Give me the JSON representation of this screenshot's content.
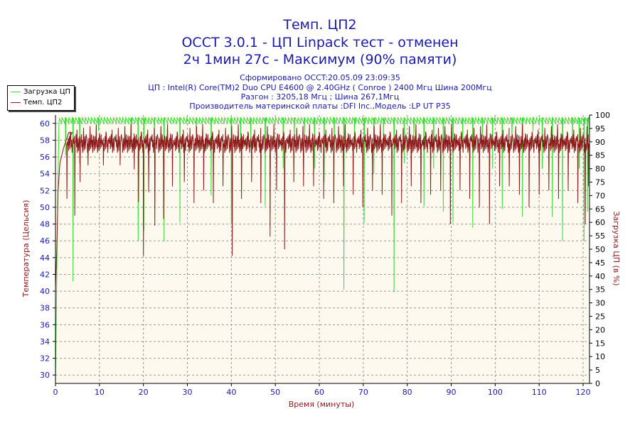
{
  "header": {
    "title_line1": "Темп. ЦП2",
    "title_line2": "OCCT 3.0.1 - ЦП Linpack тест - отменен",
    "title_line3": "2ч 1мин 27с - Максимум (90% памяти)",
    "info_line1": "Сформировано OCCT:20.05.09 23:09:35",
    "info_line2": "ЦП : Intel(R) Core(TM)2 Duo CPU E4600 @ 2.40GHz ( Conroe ) 2400 Мгц Шина 200Мгц",
    "info_line3": "Разгон : 3205,18 Мгц ; Шина 267,1Мгц",
    "info_line4": "Производитель материнской платы :DFI Inc.,Модель :LP UT P35"
  },
  "legend": {
    "cpu_load_label": "Загрузка ЦП",
    "cpu2_temp_label": "Темп. ЦП2"
  },
  "colors": {
    "cpu_load": "#33dd33",
    "cpu2_temp": "#8b1a1a",
    "plot_bg": "#fdf9ef",
    "axis_text": "#1a1aa8",
    "axis_label": "#8b1a1a"
  },
  "chart_data": {
    "type": "line",
    "xlabel": "Время (минуты)",
    "ylabel_left": "Температура (Цельсия)",
    "ylabel_right": "Загрузка ЦП (в %)",
    "xlim": [
      0,
      121.45
    ],
    "ylim_left": [
      29,
      61
    ],
    "ylim_right": [
      0,
      100
    ],
    "x_ticks": [
      0,
      10,
      20,
      30,
      40,
      50,
      60,
      70,
      80,
      90,
      100,
      110,
      120
    ],
    "y_ticks_left": [
      30,
      32,
      34,
      36,
      38,
      40,
      42,
      44,
      46,
      48,
      50,
      52,
      54,
      56,
      58,
      60
    ],
    "y_ticks_right": [
      0,
      5,
      10,
      15,
      20,
      25,
      30,
      35,
      40,
      45,
      50,
      55,
      60,
      65,
      70,
      75,
      80,
      85,
      90,
      95,
      100
    ],
    "grid": true,
    "series": [
      {
        "name": "Загрузка ЦП",
        "axis": "right",
        "baseline": 99,
        "start": [
          [
            0,
            0
          ],
          [
            0.4,
            55
          ],
          [
            0.8,
            97
          ]
        ],
        "dips": [
          [
            2.3,
            85
          ],
          [
            4.0,
            38
          ],
          [
            5.5,
            82
          ],
          [
            9.8,
            94
          ],
          [
            17.2,
            90
          ],
          [
            18.8,
            53
          ],
          [
            20.1,
            57
          ],
          [
            22.5,
            88
          ],
          [
            24.7,
            53
          ],
          [
            28.3,
            60
          ],
          [
            32.0,
            93
          ],
          [
            35.4,
            70
          ],
          [
            40.0,
            60
          ],
          [
            42.1,
            90
          ],
          [
            44.4,
            88
          ],
          [
            47.7,
            66
          ],
          [
            51.8,
            80
          ],
          [
            54.3,
            90
          ],
          [
            56.6,
            92
          ],
          [
            58.9,
            80
          ],
          [
            61.1,
            75
          ],
          [
            63.4,
            86
          ],
          [
            65.6,
            35
          ],
          [
            68.0,
            90
          ],
          [
            70.2,
            60
          ],
          [
            72.4,
            78
          ],
          [
            74.6,
            90
          ],
          [
            77.0,
            34
          ],
          [
            79.3,
            82
          ],
          [
            81.5,
            92
          ],
          [
            83.8,
            66
          ],
          [
            86.0,
            80
          ],
          [
            88.2,
            64
          ],
          [
            90.4,
            60
          ],
          [
            92.6,
            88
          ],
          [
            94.9,
            58
          ],
          [
            97.1,
            92
          ],
          [
            99.4,
            80
          ],
          [
            101.6,
            65
          ],
          [
            103.8,
            90
          ],
          [
            106.2,
            62
          ],
          [
            108.6,
            94
          ],
          [
            110.7,
            80
          ],
          [
            113.0,
            62
          ],
          [
            115.3,
            53
          ],
          [
            117.6,
            88
          ],
          [
            119.1,
            80
          ],
          [
            120.2,
            53
          ],
          [
            121.0,
            64
          ]
        ]
      },
      {
        "name": "Темп. ЦП2",
        "axis": "left",
        "baseline": 57.6,
        "start": [
          [
            0,
            40.5
          ],
          [
            0.3,
            45
          ],
          [
            0.6,
            52
          ],
          [
            1.0,
            55.2
          ],
          [
            1.8,
            57.0
          ],
          [
            3.0,
            58.9
          ],
          [
            3.8,
            58.9
          ]
        ],
        "dips": [
          [
            2.6,
            51.0
          ],
          [
            4.4,
            49.0
          ],
          [
            5.6,
            53.0
          ],
          [
            7.4,
            55.0
          ],
          [
            10.9,
            55.0
          ],
          [
            14.7,
            55.0
          ],
          [
            17.9,
            54.5
          ],
          [
            18.9,
            50.6
          ],
          [
            20.0,
            44.2
          ],
          [
            21.2,
            51.8
          ],
          [
            22.6,
            47.8
          ],
          [
            24.6,
            48.6
          ],
          [
            26.6,
            52.5
          ],
          [
            29.3,
            53.0
          ],
          [
            31.5,
            50.5
          ],
          [
            33.7,
            52.0
          ],
          [
            35.9,
            50.5
          ],
          [
            38.1,
            52.5
          ],
          [
            40.2,
            44.2
          ],
          [
            42.3,
            51.0
          ],
          [
            44.6,
            53.0
          ],
          [
            46.7,
            50.5
          ],
          [
            48.8,
            46.5
          ],
          [
            50.3,
            52.0
          ],
          [
            52.1,
            45.0
          ],
          [
            54.2,
            53.0
          ],
          [
            56.4,
            52.5
          ],
          [
            58.7,
            52.5
          ],
          [
            61.0,
            51.0
          ],
          [
            63.3,
            50.5
          ],
          [
            65.5,
            52.5
          ],
          [
            67.7,
            51.5
          ],
          [
            69.9,
            50.0
          ],
          [
            72.1,
            52.0
          ],
          [
            74.3,
            51.5
          ],
          [
            76.5,
            49.0
          ],
          [
            78.7,
            50.5
          ],
          [
            80.9,
            52.5
          ],
          [
            83.1,
            50.5
          ],
          [
            85.3,
            51.5
          ],
          [
            87.6,
            52.0
          ],
          [
            89.8,
            48.0
          ],
          [
            92.0,
            52.0
          ],
          [
            94.2,
            51.0
          ],
          [
            96.4,
            50.0
          ],
          [
            98.7,
            48.0
          ],
          [
            101.0,
            52.5
          ],
          [
            103.2,
            52.5
          ],
          [
            105.5,
            51.5
          ],
          [
            107.7,
            50.0
          ],
          [
            110.0,
            51.5
          ],
          [
            112.2,
            52.0
          ],
          [
            114.4,
            51.0
          ],
          [
            116.6,
            52.0
          ],
          [
            118.8,
            50.5
          ],
          [
            120.5,
            48.0
          ],
          [
            121.2,
            52.5
          ]
        ]
      }
    ]
  }
}
